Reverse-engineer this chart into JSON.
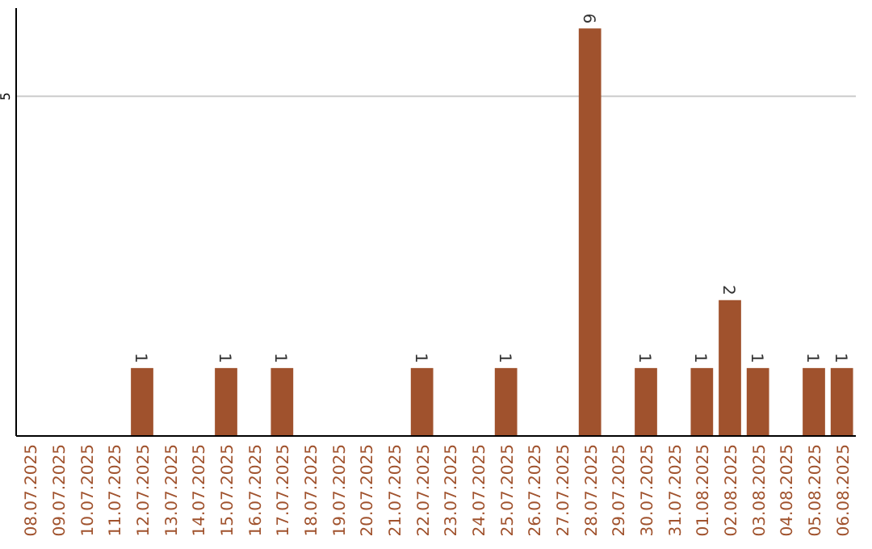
{
  "chart_data": {
    "type": "bar",
    "categories": [
      "08.07.2025",
      "09.07.2025",
      "10.07.2025",
      "11.07.2025",
      "12.07.2025",
      "13.07.2025",
      "14.07.2025",
      "15.07.2025",
      "16.07.2025",
      "17.07.2025",
      "18.07.2025",
      "19.07.2025",
      "20.07.2025",
      "21.07.2025",
      "22.07.2025",
      "23.07.2025",
      "24.07.2025",
      "25.07.2025",
      "26.07.2025",
      "27.07.2025",
      "28.07.2025",
      "29.07.2025",
      "30.07.2025",
      "31.07.2025",
      "01.08.2025",
      "02.08.2025",
      "03.08.2025",
      "04.08.2025",
      "05.08.2025",
      "06.08.2025"
    ],
    "values": [
      0,
      0,
      0,
      0,
      1,
      0,
      0,
      1,
      0,
      1,
      0,
      0,
      0,
      0,
      1,
      0,
      0,
      1,
      0,
      0,
      6,
      0,
      1,
      0,
      1,
      2,
      1,
      0,
      1,
      1
    ],
    "value_labels": [
      null,
      null,
      null,
      null,
      "1",
      null,
      null,
      "1",
      null,
      "1",
      null,
      null,
      null,
      null,
      "1",
      null,
      null,
      "1",
      null,
      null,
      "6",
      null,
      "1",
      null,
      "1",
      "2",
      "1",
      null,
      "1",
      "1"
    ],
    "color": "#a0522d",
    "ylim": [
      0,
      6.3
    ],
    "yticks": [
      5
    ],
    "grid": "y"
  }
}
